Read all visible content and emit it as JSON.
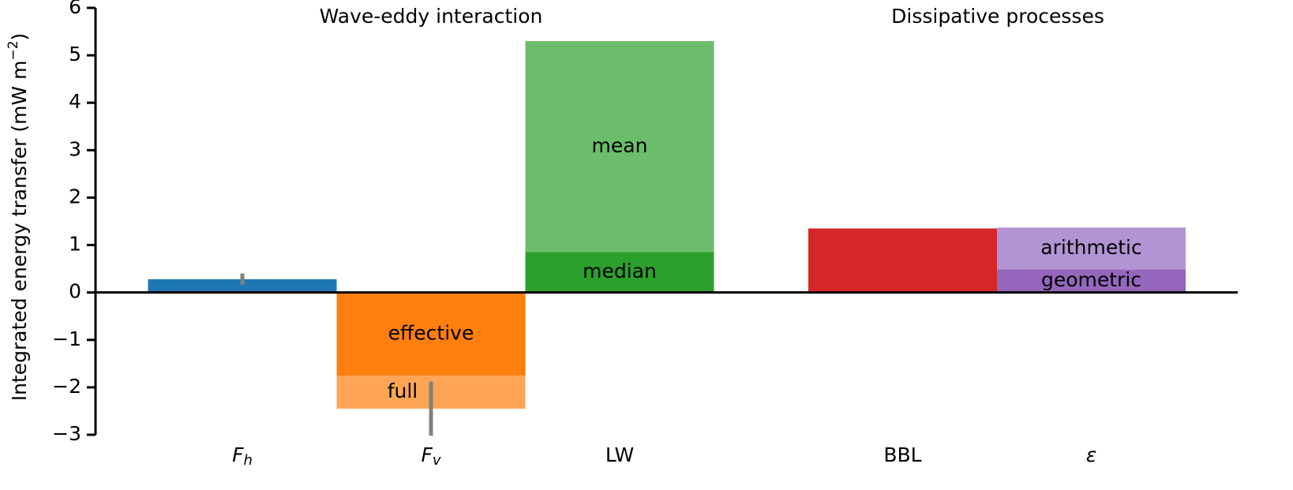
{
  "chart_data": {
    "type": "bar",
    "ylabel": "Integrated energy transfer (mW m",
    "ylabel_sup": "−2",
    "ylabel_end": ")",
    "ylim": [
      -3,
      6
    ],
    "yticks": [
      {
        "value": -3,
        "label": "−3"
      },
      {
        "value": -2,
        "label": "−2"
      },
      {
        "value": -1,
        "label": "−1"
      },
      0,
      1,
      2,
      3,
      4,
      5,
      6
    ],
    "groups": [
      {
        "label": "Wave-eddy interaction"
      },
      {
        "label": "Dissipative processes"
      }
    ],
    "categories": [
      {
        "label": "F",
        "sub": "h",
        "italic": true,
        "bars": [
          {
            "value": 0.28,
            "error": 0.12,
            "color": "#1f77b4"
          }
        ]
      },
      {
        "label": "F",
        "sub": "v",
        "italic": true,
        "bars": [
          {
            "name": "full",
            "value": -2.45,
            "error": 0.57,
            "color": "#ffa556"
          },
          {
            "name": "effective",
            "value": -1.75,
            "color": "#ff7f0e"
          }
        ]
      },
      {
        "label": "LW",
        "bars": [
          {
            "name": "mean",
            "value": 5.3,
            "color": "#6bbc6b"
          },
          {
            "name": "median",
            "value": 0.85,
            "color": "#2ca02c"
          }
        ]
      },
      {
        "label": "BBL",
        "bars": [
          {
            "value": 1.35,
            "color": "#d62728"
          }
        ]
      },
      {
        "label": "ε",
        "italic": true,
        "bars": [
          {
            "name": "arithmetic",
            "value": 1.37,
            "color": "#b293d3"
          },
          {
            "name": "geometric",
            "value": 0.48,
            "color": "#9467bd"
          }
        ]
      }
    ]
  }
}
